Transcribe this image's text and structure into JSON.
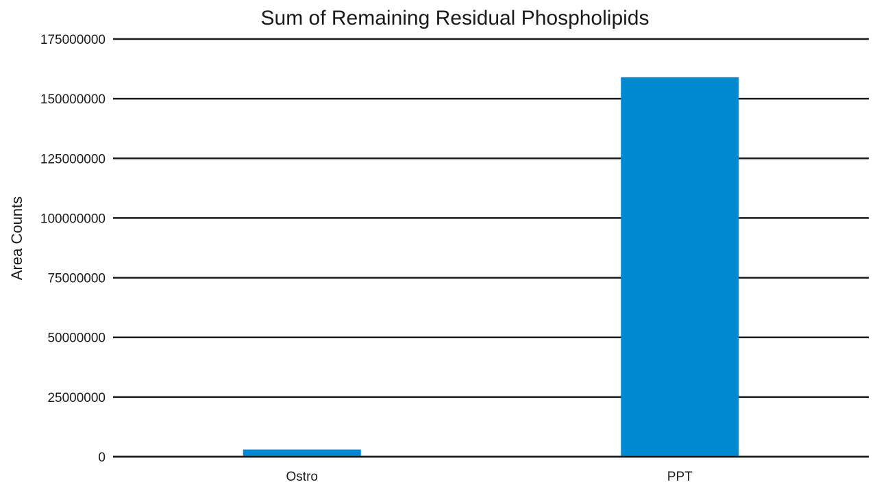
{
  "chart_data": {
    "type": "bar",
    "title": "Sum of Remaining Residual Phospholipids",
    "xlabel": "",
    "ylabel": "Area Counts",
    "categories": [
      "Ostro",
      "PPT"
    ],
    "values": [
      3000000,
      159000000
    ],
    "ylim": [
      0,
      175000000
    ],
    "yticks": [
      0,
      25000000,
      50000000,
      75000000,
      100000000,
      125000000,
      150000000,
      175000000
    ],
    "ytick_labels": [
      "0",
      "25000000",
      "50000000",
      "75000000",
      "100000000",
      "125000000",
      "150000000",
      "175000000"
    ],
    "grid": true,
    "legend": "none",
    "bar_color": "#0089d0",
    "grid_color": "#1a1a1a"
  }
}
